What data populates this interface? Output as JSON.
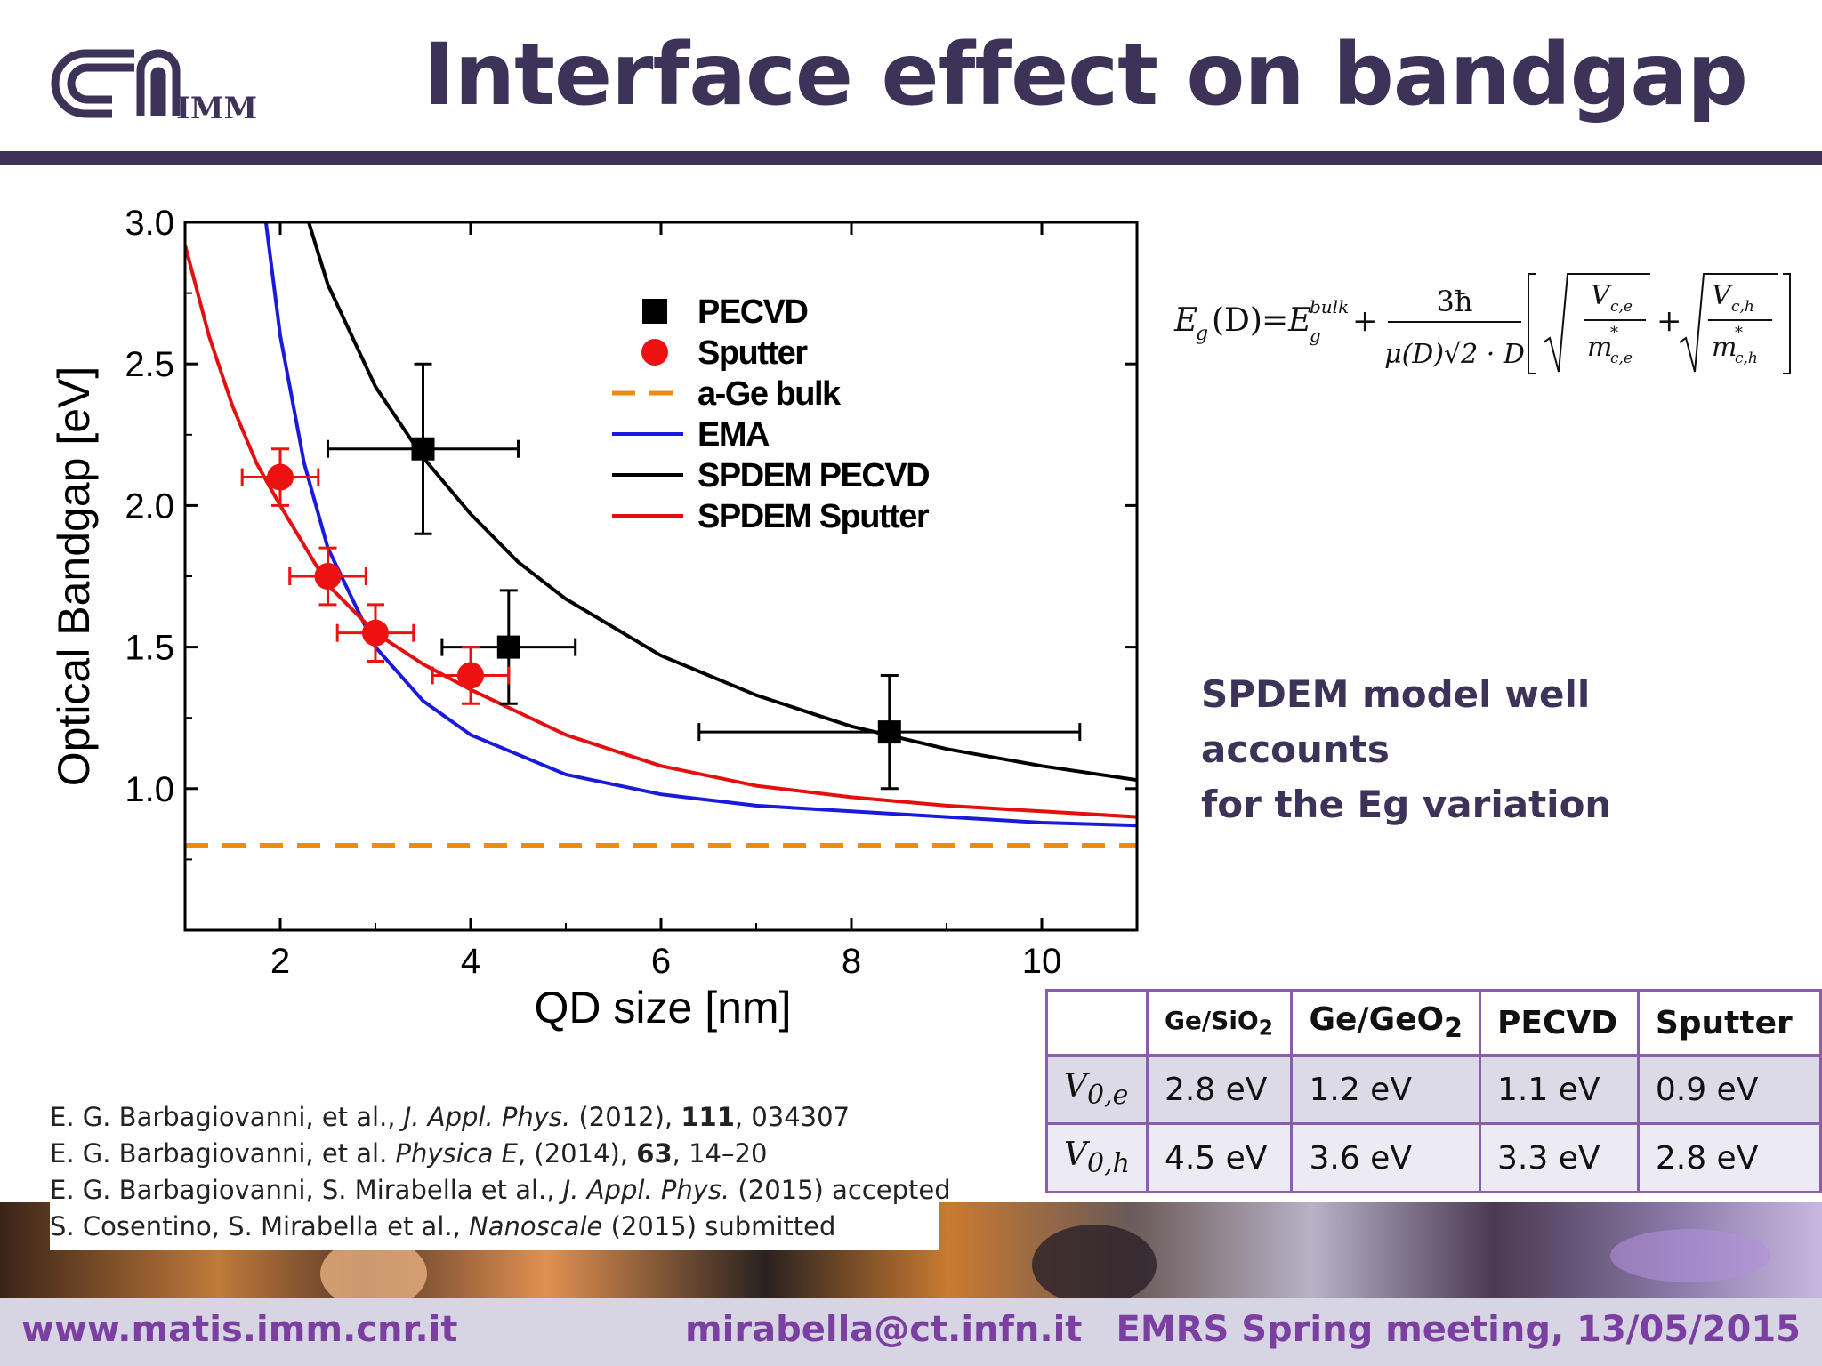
{
  "header": {
    "title": "Interface effect on bandgap",
    "logo_text": "IMM"
  },
  "chart_data": {
    "type": "scatter",
    "xlabel": "QD size [nm]",
    "ylabel": "Optical Bandgap [eV]",
    "xlim": [
      1,
      11
    ],
    "ylim": [
      0.5,
      3.0
    ],
    "xticks": [
      2,
      4,
      6,
      8,
      10
    ],
    "yticks": [
      1.0,
      1.5,
      2.0,
      2.5,
      3.0
    ],
    "ytick_labels": [
      "1.0",
      "1.5",
      "2.0",
      "2.5",
      "3.0"
    ],
    "legend_position": "top-center",
    "series": [
      {
        "name": "PECVD",
        "kind": "points",
        "marker": "square",
        "color": "#000000",
        "points": [
          {
            "x": 3.5,
            "y": 2.2,
            "xerr": 1.0,
            "yerr": 0.3
          },
          {
            "x": 4.4,
            "y": 1.5,
            "xerr": 0.7,
            "yerr": 0.2
          },
          {
            "x": 8.4,
            "y": 1.2,
            "xerr": 2.0,
            "yerr": 0.2
          }
        ]
      },
      {
        "name": "Sputter",
        "kind": "points",
        "marker": "circle",
        "color": "#ee1111",
        "points": [
          {
            "x": 2.0,
            "y": 2.1,
            "xerr": 0.4,
            "yerr": 0.1
          },
          {
            "x": 2.5,
            "y": 1.75,
            "xerr": 0.4,
            "yerr": 0.1
          },
          {
            "x": 3.0,
            "y": 1.55,
            "xerr": 0.4,
            "yerr": 0.1
          },
          {
            "x": 4.0,
            "y": 1.4,
            "xerr": 0.4,
            "yerr": 0.1
          }
        ]
      },
      {
        "name": "a-Ge bulk",
        "kind": "line",
        "dash": true,
        "color": "#f08a12",
        "x": [
          1,
          11
        ],
        "y": [
          0.8,
          0.8
        ]
      },
      {
        "name": "EMA",
        "kind": "line",
        "color": "#1a1adc",
        "x": [
          1.85,
          2.0,
          2.25,
          2.5,
          3.0,
          3.5,
          4.0,
          5.0,
          6.0,
          7.0,
          8.0,
          9.0,
          10.0,
          11.0
        ],
        "y": [
          3.0,
          2.6,
          2.15,
          1.85,
          1.5,
          1.31,
          1.19,
          1.05,
          0.98,
          0.94,
          0.92,
          0.9,
          0.88,
          0.87
        ]
      },
      {
        "name": "SPDEM PECVD",
        "kind": "line",
        "color": "#000000",
        "x": [
          2.3,
          2.5,
          3.0,
          3.5,
          4.0,
          4.5,
          5.0,
          6.0,
          7.0,
          8.0,
          9.0,
          10.0,
          11.0
        ],
        "y": [
          3.0,
          2.78,
          2.42,
          2.17,
          1.97,
          1.8,
          1.67,
          1.47,
          1.33,
          1.22,
          1.14,
          1.08,
          1.03
        ]
      },
      {
        "name": "SPDEM Sputter",
        "kind": "line",
        "color": "#e41010",
        "x": [
          1.0,
          1.25,
          1.5,
          1.75,
          2.0,
          2.5,
          3.0,
          3.5,
          4.0,
          5.0,
          6.0,
          7.0,
          8.0,
          9.0,
          10.0,
          11.0
        ],
        "y": [
          2.92,
          2.6,
          2.35,
          2.15,
          2.0,
          1.72,
          1.55,
          1.44,
          1.35,
          1.19,
          1.08,
          1.01,
          0.97,
          0.94,
          0.92,
          0.9
        ]
      }
    ]
  },
  "formula": {
    "lhs": "E",
    "lhs_sub": "g",
    "arg": "(D)",
    "eq": "=",
    "bulk_base": "E",
    "bulk_sup": "bulk",
    "bulk_sub": "g",
    "plus": "+",
    "num": "3ħ",
    "den": "μ(D)√2 · D",
    "ve": "V",
    "ve_sub": "c,e",
    "me": "m",
    "me_sub": "c,e",
    "vh": "V",
    "vh_sub": "c,h",
    "mh": "m",
    "mh_sub": "c,h",
    "star": "*"
  },
  "note": {
    "line1": "SPDEM model well accounts",
    "line2": "for the Eg variation"
  },
  "table": {
    "headers": [
      {
        "base": "Ge/SiO",
        "sub": "2"
      },
      {
        "base": "Ge/GeO",
        "sub": "2"
      },
      {
        "base": "PECVD",
        "sub": ""
      },
      {
        "base": "Sputter",
        "sub": ""
      }
    ],
    "rows": [
      {
        "label": "V",
        "label_sub": "0,e",
        "values": [
          "2.8 eV",
          "1.2 eV",
          "1.1 eV",
          "0.9 eV"
        ]
      },
      {
        "label": "V",
        "label_sub": "0,h",
        "values": [
          "4.5 eV",
          "3.6 eV",
          "3.3 eV",
          "2.8 eV"
        ]
      }
    ]
  },
  "references": [
    {
      "authors": "E. G. Barbagiovanni, et al., ",
      "journal": "J. Appl. Phys.",
      "mid": " (2012), ",
      "vol": "111",
      "tail": ", 034307"
    },
    {
      "authors": "E. G. Barbagiovanni, et al. ",
      "journal": "Physica E",
      "mid": ", (2014), ",
      "vol": "63",
      "tail": ", 14–20"
    },
    {
      "authors": "E. G. Barbagiovanni, S. Mirabella  et al., ",
      "journal": "J. Appl. Phys.",
      "mid": " (2015) accepted",
      "vol": "",
      "tail": ""
    },
    {
      "authors": "S. Cosentino, S. Mirabella et al., ",
      "journal": "Nanoscale",
      "mid": " (2015) submitted",
      "vol": "",
      "tail": ""
    }
  ],
  "footer": {
    "website": "www.matis.imm.cnr.it",
    "email": "mirabella@ct.infn.it",
    "event": "EMRS Spring meeting, 13/05/2015"
  },
  "colors": {
    "title": "#3d3358",
    "footer_text": "#7a3fa0",
    "footer_bg": "#d7d4e4",
    "table_border": "#8a5fa8"
  }
}
